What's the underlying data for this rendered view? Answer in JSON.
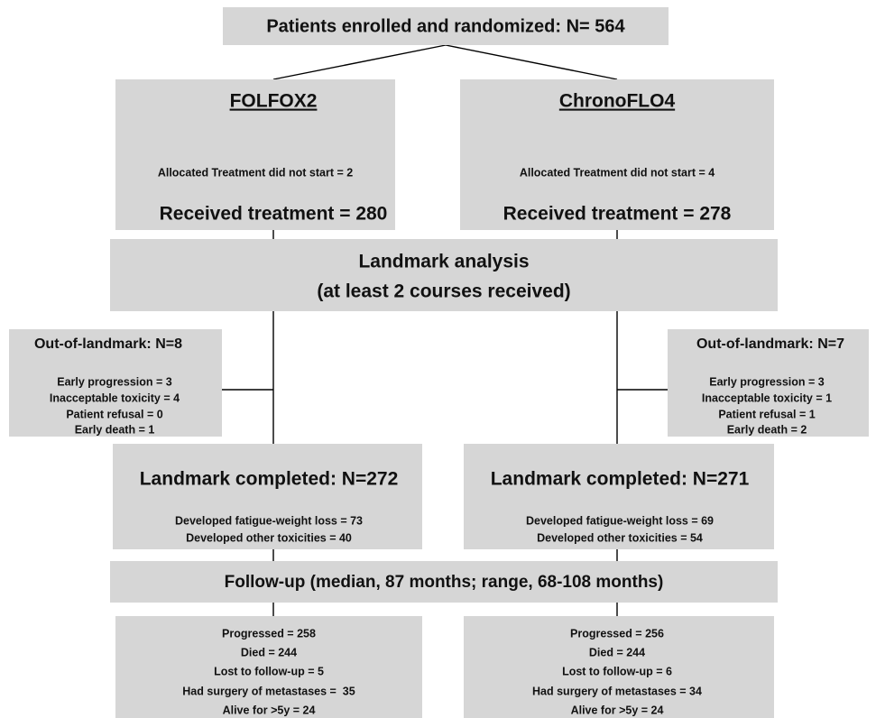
{
  "header": {
    "title": "Patients enrolled and randomized: N= 564"
  },
  "arms": [
    {
      "title": "FOLFOX2",
      "not_started": "Allocated Treatment did not start = 2",
      "received": "Received treatment = 280"
    },
    {
      "title": "ChronoFLO4",
      "not_started": "Allocated Treatment did not start = 4",
      "received": "Received treatment = 278"
    }
  ],
  "landmark": {
    "lines": [
      "Landmark analysis",
      "(at least 2 courses received)"
    ]
  },
  "out_of_landmark": [
    {
      "title": "Out-of-landmark: N=8",
      "items": [
        "Early progression = 3",
        "Inacceptable toxicity = 4",
        "Patient refusal = 0",
        "Early death = 1"
      ]
    },
    {
      "title": "Out-of-landmark: N=7",
      "items": [
        "Early progression = 3",
        "Inacceptable toxicity = 1",
        "Patient refusal = 1",
        "Early death = 2"
      ]
    }
  ],
  "completed": [
    {
      "title": "Landmark completed: N=272",
      "items": [
        "Developed fatigue-weight loss = 73",
        "Developed other toxicities = 40"
      ]
    },
    {
      "title": "Landmark completed: N=271",
      "items": [
        "Developed fatigue-weight loss = 69",
        "Developed other toxicities = 54"
      ]
    }
  ],
  "followup": {
    "title": "Follow-up (median, 87 months; range, 68-108 months)"
  },
  "outcomes": [
    {
      "items": [
        "Progressed = 258",
        "Died = 244",
        "Lost to follow-up = 5",
        "Had surgery of metastases =  35",
        "Alive for >5y = 24"
      ]
    },
    {
      "items": [
        "Progressed = 256",
        "Died = 244",
        "Lost to follow-up = 6",
        "Had surgery of metastases = 34",
        "Alive for >5y = 24"
      ]
    }
  ]
}
